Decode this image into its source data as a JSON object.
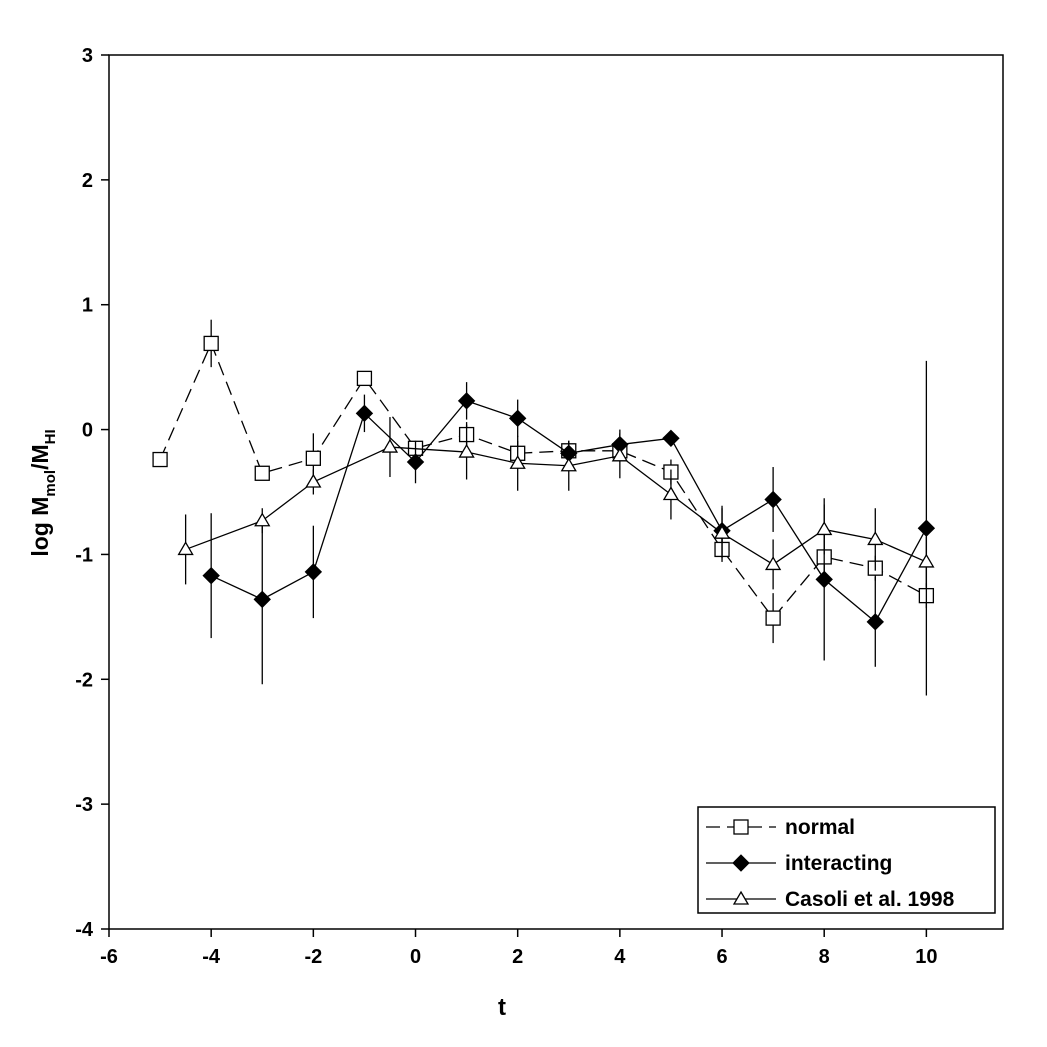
{
  "chart_data": {
    "type": "scatter",
    "xlabel": "t",
    "ylabel": {
      "prefix": "log M",
      "sub1": "mol",
      "mid": "/M",
      "sub2": "HI"
    },
    "xlim": [
      -6,
      11.5
    ],
    "ylim": [
      -4,
      3
    ],
    "xticks": [
      -6,
      -4,
      -2,
      0,
      2,
      4,
      6,
      8,
      10
    ],
    "yticks": [
      3,
      2,
      1,
      0,
      -1,
      -2,
      -3,
      -4
    ],
    "grid": false,
    "legend_position": "bottom-right",
    "series": [
      {
        "name": "normal",
        "marker": "open-square",
        "line": "dashed",
        "x": [
          -5,
          -4,
          -3,
          -2,
          -1,
          0,
          1,
          2,
          3,
          4,
          5,
          6,
          7,
          8,
          9,
          10
        ],
        "y": [
          -0.24,
          0.69,
          -0.35,
          -0.23,
          0.41,
          -0.15,
          -0.04,
          -0.19,
          -0.17,
          -0.17,
          -0.34,
          -0.96,
          -1.51,
          -1.02,
          -1.11,
          -1.33
        ],
        "err": [
          0.06,
          0.19,
          0.03,
          0.2,
          0.03,
          0.03,
          0.1,
          0.1,
          0.08,
          0.08,
          0.1,
          0.1,
          0.2,
          0.2,
          0.1,
          0.1
        ]
      },
      {
        "name": "interacting",
        "marker": "filled-diamond",
        "line": "solid",
        "x": [
          -4,
          -3,
          -2,
          -1,
          0,
          1,
          2,
          3,
          4,
          5,
          6,
          7,
          8,
          9,
          10
        ],
        "y": [
          -1.17,
          -1.36,
          -1.14,
          0.13,
          -0.26,
          0.23,
          0.09,
          -0.19,
          -0.12,
          -0.07,
          -0.81,
          -0.56,
          -1.2,
          -1.54,
          -0.79
        ],
        "err": [
          0.5,
          0.68,
          0.37,
          0.15,
          0.17,
          0.15,
          0.15,
          0.1,
          0.12,
          0.05,
          0.2,
          0.26,
          0.65,
          0.36,
          1.34
        ]
      },
      {
        "name": "Casoli et al. 1998",
        "marker": "open-triangle",
        "line": "solid",
        "x": [
          -4.5,
          -3,
          -2,
          -0.5,
          1,
          2,
          3,
          4,
          5,
          6,
          7,
          8,
          9,
          10
        ],
        "y": [
          -0.96,
          -0.73,
          -0.42,
          -0.14,
          -0.18,
          -0.27,
          -0.29,
          -0.21,
          -0.52,
          -0.83,
          -1.08,
          -0.8,
          -0.88,
          -1.06
        ],
        "err": [
          0.28,
          0.1,
          0.1,
          0.24,
          0.22,
          0.22,
          0.2,
          0.18,
          0.2,
          0.2,
          0.2,
          0.2,
          0.25,
          0.2
        ]
      }
    ]
  }
}
